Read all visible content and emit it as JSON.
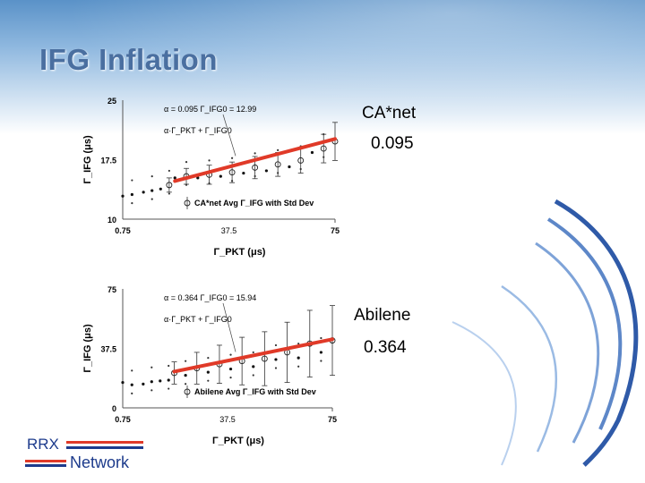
{
  "slide": {
    "title": "IFG Inflation",
    "brand": {
      "rrx": "RRX",
      "network": "Network"
    }
  },
  "colors": {
    "title": "#4a6fa0",
    "fit_line": "#e03a28",
    "brand": "#1d3b8c"
  },
  "chart_data": [
    {
      "type": "scatter",
      "side_label": "CA*net",
      "side_value": "0.095",
      "ylabel": "Γ_IFG (μs)",
      "xlabel": "Γ_PKT (μs)",
      "xlim": [
        0.75,
        75
      ],
      "ylim": [
        10,
        25
      ],
      "x_ticks": [
        "0.75",
        "37.5",
        "75"
      ],
      "y_ticks": [
        "25",
        "17.5",
        "10"
      ],
      "annotations": {
        "params": "α = 0.095   Γ_IFG0 = 12.99",
        "formula": "α·Γ_PKT + Γ_IFG0",
        "legend": "CA*net Avg Γ_IFG   with Std Dev"
      },
      "fit": {
        "slope": 0.095,
        "intercept": 12.99,
        "x": [
          19,
          75
        ]
      },
      "series": [
        {
          "name": "CA*net Avg Γ_IFG with Std Dev",
          "x": [
            0.75,
            4,
            8,
            11,
            14,
            17,
            19,
            23,
            27,
            31,
            35,
            39,
            43,
            47,
            51,
            55,
            59,
            63,
            67,
            71,
            75
          ],
          "y": [
            12.9,
            13.1,
            13.4,
            13.6,
            13.8,
            14.3,
            15.2,
            15.4,
            15.2,
            15.6,
            15.4,
            15.9,
            15.8,
            16.5,
            16.1,
            16.9,
            16.6,
            17.4,
            18.4,
            18.9,
            19.8
          ],
          "spread": [
            0,
            0,
            0,
            0,
            0,
            0.9,
            0,
            1.0,
            0,
            1.2,
            0,
            1.3,
            0,
            1.4,
            0,
            1.5,
            0,
            1.6,
            0,
            1.8,
            2.4
          ]
        }
      ]
    },
    {
      "type": "scatter",
      "side_label": "Abilene",
      "side_value": "0.364",
      "ylabel": "Γ_IFG (μs)",
      "xlabel": "Γ_PKT (μs)",
      "xlim": [
        0.75,
        75
      ],
      "ylim": [
        0,
        75
      ],
      "x_ticks": [
        "0.75",
        "37.5",
        "75"
      ],
      "y_ticks": [
        "75",
        "37.5",
        "0"
      ],
      "annotations": {
        "params": "α = 0.364   Γ_IFG0 = 15.94",
        "formula": "α·Γ_PKT + Γ_IFG0",
        "legend": "Abilene Avg Γ_IFG   with Std Dev"
      },
      "fit": {
        "slope": 0.364,
        "intercept": 15.94,
        "x": [
          19,
          75
        ]
      },
      "series": [
        {
          "name": "Abilene Avg Γ_IFG with Std Dev",
          "x": [
            0.75,
            4,
            8,
            11,
            14,
            17,
            19,
            23,
            27,
            31,
            35,
            39,
            43,
            47,
            51,
            55,
            59,
            63,
            67,
            71,
            75
          ],
          "y": [
            16,
            14.5,
            15,
            16.5,
            17,
            17.5,
            22,
            20.5,
            25,
            22.5,
            27.5,
            24.5,
            29.5,
            26,
            31,
            30.5,
            35,
            31.5,
            40.5,
            35,
            42.5
          ],
          "spread": [
            0,
            0,
            0,
            0,
            0,
            0,
            7,
            0,
            10,
            0,
            12,
            0,
            15,
            0,
            17,
            0,
            19,
            0,
            21,
            0,
            22
          ]
        }
      ]
    }
  ]
}
